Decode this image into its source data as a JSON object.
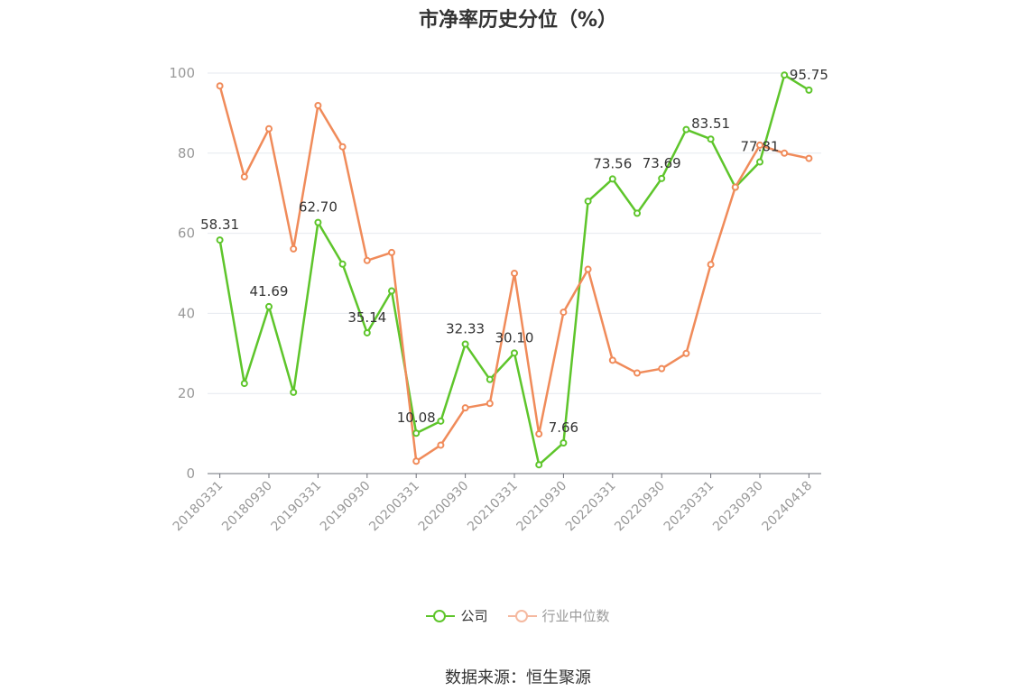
{
  "chart_data": {
    "type": "line",
    "title": "市净率历史分位（%）",
    "source": "数据来源：恒生聚源",
    "ylim": [
      0,
      100
    ],
    "yticks": [
      0,
      20,
      40,
      60,
      80,
      100
    ],
    "grid": true,
    "legend_position": "bottom",
    "x": [
      "20180331",
      "20180630",
      "20180930",
      "20181231",
      "20190331",
      "20190630",
      "20190930",
      "20191231",
      "20200331",
      "20200630",
      "20200930",
      "20201231",
      "20210331",
      "20210630",
      "20210930",
      "20211231",
      "20220331",
      "20220630",
      "20220930",
      "20221231",
      "20230331",
      "20230630",
      "20230930",
      "20231231",
      "20240418"
    ],
    "x_tick_labels": [
      "20180331",
      "20180930",
      "20190331",
      "20190930",
      "20200331",
      "20200930",
      "20210331",
      "20210930",
      "20220331",
      "20220930",
      "20230331",
      "20230930",
      "20240418"
    ],
    "series": [
      {
        "name": "公司",
        "color": "#5ec52b",
        "values": [
          58.31,
          22.5,
          41.69,
          20.3,
          62.7,
          52.3,
          35.14,
          45.6,
          10.08,
          13.1,
          32.33,
          23.5,
          30.1,
          2.2,
          7.66,
          68.0,
          73.56,
          65.0,
          73.69,
          85.9,
          83.51,
          71.5,
          77.81,
          99.5,
          95.75
        ],
        "data_labels": {
          "0": "58.31",
          "2": "41.69",
          "4": "62.70",
          "6": "35.14",
          "8": "10.08",
          "10": "32.33",
          "12": "30.10",
          "14": "7.66",
          "16": "73.56",
          "18": "73.69",
          "20": "83.51",
          "22": "77.81",
          "24": "95.75"
        }
      },
      {
        "name": "行业中位数",
        "color": "#f08b5a",
        "values": [
          96.8,
          74.1,
          86.1,
          56.1,
          91.9,
          81.6,
          53.2,
          55.2,
          3.1,
          7.1,
          16.4,
          17.5,
          50.0,
          9.9,
          40.3,
          51.0,
          28.3,
          25.1,
          26.2,
          30.0,
          52.2,
          71.5,
          82.0,
          80.0,
          78.7
        ]
      }
    ]
  }
}
